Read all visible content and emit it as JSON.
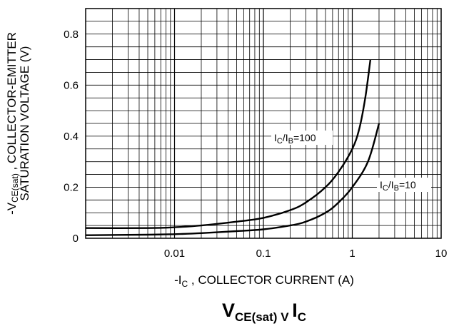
{
  "chart_data": {
    "type": "line",
    "x_scale": "log",
    "xlim": [
      0.001,
      10
    ],
    "ylim": [
      0,
      0.9
    ],
    "grid": true,
    "x_ticks": [
      {
        "value": 0.01,
        "label": "0.01"
      },
      {
        "value": 0.1,
        "label": "0.1"
      },
      {
        "value": 1,
        "label": "1"
      },
      {
        "value": 10,
        "label": "10"
      }
    ],
    "y_ticks": [
      {
        "value": 0,
        "label": "0"
      },
      {
        "value": 0.2,
        "label": "0.2"
      },
      {
        "value": 0.4,
        "label": "0.4"
      },
      {
        "value": 0.6,
        "label": "0.6"
      },
      {
        "value": 0.8,
        "label": "0.8"
      }
    ],
    "xlabel": {
      "prefix": "-I",
      "sub": "C",
      "rest": " , COLLECTOR CURRENT (A)"
    },
    "ylabel": {
      "line1_prefix": "-V",
      "line1_sub": "CE(sat)",
      "line1_rest": " , COLLECTOR-EMITTER",
      "line2": "SATURATION VOLTAGE (V)"
    },
    "title": {
      "main": "V",
      "sub": "CE(sat)",
      "mid": " V ",
      "main2": "I",
      "sub2": "C"
    },
    "series": [
      {
        "name": {
          "i": "I",
          "c": "C",
          "slash": "/I",
          "b": "B",
          "rest": "=100"
        },
        "x": [
          0.001,
          0.005,
          0.01,
          0.02,
          0.05,
          0.1,
          0.2,
          0.3,
          0.5,
          0.7,
          1.0,
          1.2,
          1.4,
          1.6
        ],
        "y": [
          0.04,
          0.04,
          0.043,
          0.05,
          0.065,
          0.08,
          0.11,
          0.14,
          0.2,
          0.26,
          0.35,
          0.43,
          0.55,
          0.7
        ]
      },
      {
        "name": {
          "i": "I",
          "c": "C",
          "slash": "/I",
          "b": "B",
          "rest": "=10"
        },
        "x": [
          0.001,
          0.005,
          0.01,
          0.02,
          0.05,
          0.1,
          0.2,
          0.3,
          0.5,
          0.7,
          1.0,
          1.5,
          2.0
        ],
        "y": [
          0.012,
          0.014,
          0.016,
          0.02,
          0.028,
          0.035,
          0.05,
          0.065,
          0.1,
          0.14,
          0.2,
          0.3,
          0.45
        ]
      }
    ]
  }
}
